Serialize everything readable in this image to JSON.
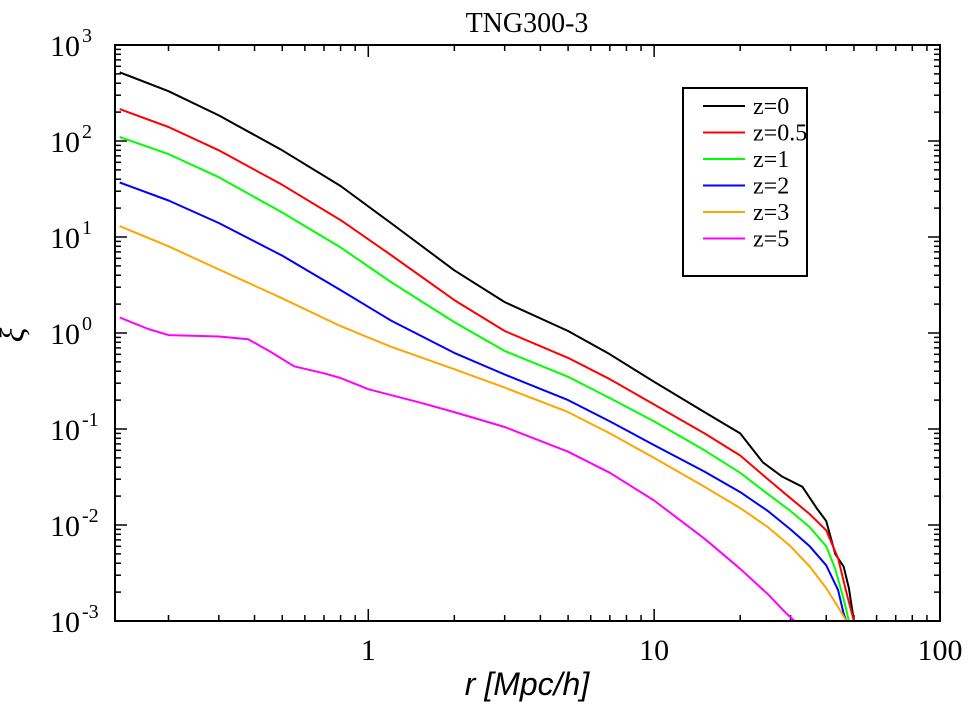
{
  "chart_data": {
    "type": "line",
    "title": "TNG300-3",
    "xlabel": "r [Mpc/h]",
    "ylabel": "ξ",
    "xscale": "log",
    "yscale": "log",
    "xlim": [
      0.13,
      100
    ],
    "ylim": [
      0.001,
      1000
    ],
    "grid": false,
    "legend_position": "top-right",
    "x_ticks": [
      {
        "value": 1,
        "label": "1"
      },
      {
        "value": 10,
        "label": "10"
      },
      {
        "value": 100,
        "label": "100"
      }
    ],
    "y_ticks": [
      {
        "value": 0.001,
        "base": "10",
        "exp": "-3"
      },
      {
        "value": 0.01,
        "base": "10",
        "exp": "-2"
      },
      {
        "value": 0.1,
        "base": "10",
        "exp": "-1"
      },
      {
        "value": 1,
        "base": "10",
        "exp": "0"
      },
      {
        "value": 10,
        "base": "10",
        "exp": "1"
      },
      {
        "value": 100,
        "base": "10",
        "exp": "2"
      },
      {
        "value": 1000,
        "base": "10",
        "exp": "3"
      }
    ],
    "series": [
      {
        "name": "z=0",
        "color": "#000000",
        "points": [
          [
            0.135,
            520
          ],
          [
            0.2,
            330
          ],
          [
            0.3,
            185
          ],
          [
            0.5,
            80
          ],
          [
            0.8,
            34
          ],
          [
            1.2,
            14
          ],
          [
            2,
            4.5
          ],
          [
            3,
            2.1
          ],
          [
            5,
            1.05
          ],
          [
            7,
            0.6
          ],
          [
            10,
            0.31
          ],
          [
            15,
            0.15
          ],
          [
            20,
            0.09
          ],
          [
            24,
            0.045
          ],
          [
            28,
            0.032
          ],
          [
            33,
            0.025
          ],
          [
            37,
            0.015
          ],
          [
            40,
            0.011
          ],
          [
            43,
            0.005
          ],
          [
            46,
            0.0037
          ],
          [
            48,
            0.0022
          ],
          [
            50,
            0.001
          ]
        ]
      },
      {
        "name": "z=0.5",
        "color": "#ff0000",
        "points": [
          [
            0.135,
            215
          ],
          [
            0.2,
            140
          ],
          [
            0.3,
            80
          ],
          [
            0.5,
            35
          ],
          [
            0.8,
            15
          ],
          [
            1.2,
            6.5
          ],
          [
            2,
            2.2
          ],
          [
            3,
            1.05
          ],
          [
            5,
            0.55
          ],
          [
            7,
            0.33
          ],
          [
            10,
            0.18
          ],
          [
            15,
            0.09
          ],
          [
            20,
            0.053
          ],
          [
            25,
            0.03
          ],
          [
            30,
            0.019
          ],
          [
            35,
            0.013
          ],
          [
            40,
            0.0088
          ],
          [
            44,
            0.0045
          ],
          [
            47,
            0.002
          ],
          [
            50,
            0.001
          ]
        ]
      },
      {
        "name": "z=1",
        "color": "#00ff00",
        "points": [
          [
            0.135,
            110
          ],
          [
            0.2,
            73
          ],
          [
            0.3,
            42
          ],
          [
            0.5,
            18
          ],
          [
            0.8,
            7.8
          ],
          [
            1.2,
            3.4
          ],
          [
            2,
            1.3
          ],
          [
            3,
            0.65
          ],
          [
            5,
            0.35
          ],
          [
            7,
            0.21
          ],
          [
            10,
            0.12
          ],
          [
            15,
            0.06
          ],
          [
            20,
            0.035
          ],
          [
            25,
            0.021
          ],
          [
            30,
            0.014
          ],
          [
            35,
            0.0095
          ],
          [
            40,
            0.006
          ],
          [
            43,
            0.0035
          ],
          [
            46,
            0.0017
          ],
          [
            48,
            0.001
          ]
        ]
      },
      {
        "name": "z=2",
        "color": "#0000ff",
        "points": [
          [
            0.135,
            37
          ],
          [
            0.2,
            24
          ],
          [
            0.3,
            14
          ],
          [
            0.5,
            6.4
          ],
          [
            0.8,
            2.8
          ],
          [
            1.2,
            1.35
          ],
          [
            2,
            0.62
          ],
          [
            3,
            0.37
          ],
          [
            5,
            0.2
          ],
          [
            7,
            0.12
          ],
          [
            10,
            0.068
          ],
          [
            15,
            0.036
          ],
          [
            20,
            0.022
          ],
          [
            25,
            0.014
          ],
          [
            30,
            0.009
          ],
          [
            35,
            0.006
          ],
          [
            40,
            0.0038
          ],
          [
            44,
            0.0021
          ],
          [
            46,
            0.0012
          ],
          [
            47,
            0.001
          ]
        ]
      },
      {
        "name": "z=3",
        "color": "#ffa500",
        "points": [
          [
            0.135,
            13
          ],
          [
            0.2,
            8
          ],
          [
            0.3,
            4.6
          ],
          [
            0.5,
            2.3
          ],
          [
            0.8,
            1.18
          ],
          [
            1.2,
            0.72
          ],
          [
            2,
            0.42
          ],
          [
            3,
            0.27
          ],
          [
            5,
            0.15
          ],
          [
            7,
            0.09
          ],
          [
            10,
            0.05
          ],
          [
            15,
            0.025
          ],
          [
            20,
            0.015
          ],
          [
            25,
            0.0095
          ],
          [
            30,
            0.006
          ],
          [
            35,
            0.0037
          ],
          [
            40,
            0.0022
          ],
          [
            44,
            0.0014
          ],
          [
            47,
            0.001
          ]
        ]
      },
      {
        "name": "z=5",
        "color": "#ff00ff",
        "points": [
          [
            0.135,
            1.45
          ],
          [
            0.17,
            1.1
          ],
          [
            0.2,
            0.95
          ],
          [
            0.3,
            0.92
          ],
          [
            0.38,
            0.86
          ],
          [
            0.45,
            0.65
          ],
          [
            0.55,
            0.45
          ],
          [
            0.7,
            0.38
          ],
          [
            0.8,
            0.34
          ],
          [
            1,
            0.26
          ],
          [
            1.5,
            0.19
          ],
          [
            2,
            0.15
          ],
          [
            3,
            0.105
          ],
          [
            5,
            0.058
          ],
          [
            7,
            0.035
          ],
          [
            10,
            0.018
          ],
          [
            15,
            0.0072
          ],
          [
            20,
            0.0035
          ],
          [
            25,
            0.0019
          ],
          [
            29,
            0.0012
          ],
          [
            31,
            0.001
          ]
        ]
      }
    ]
  }
}
